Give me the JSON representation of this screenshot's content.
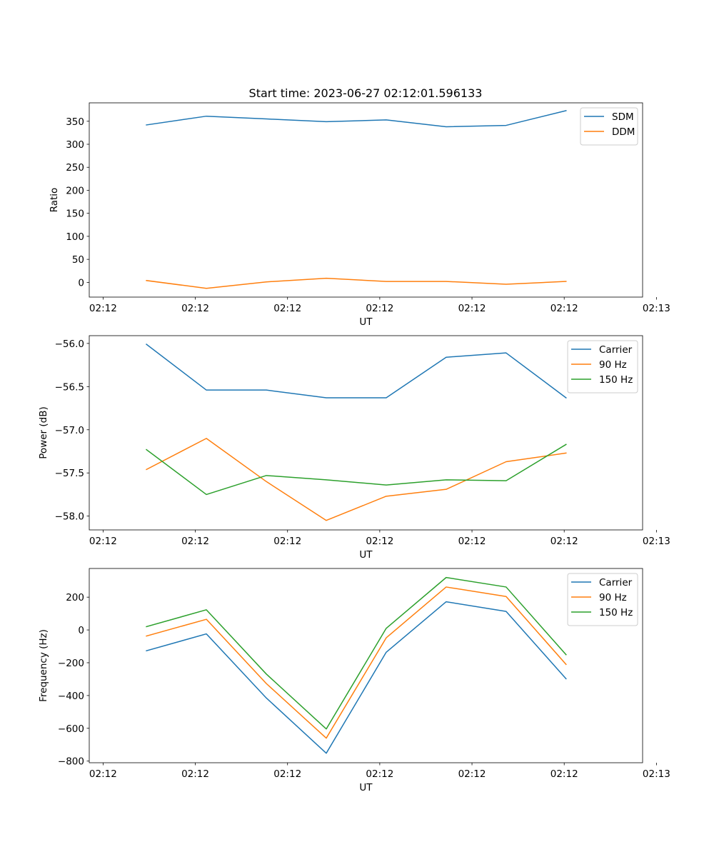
{
  "figure": {
    "title": "Start time: 2023-06-27 02:12:01.596133"
  },
  "colors": {
    "c0": "#1f77b4",
    "c1": "#ff7f0e",
    "c2": "#2ca02c",
    "axis": "#000000",
    "legend_edge": "#cccccc"
  },
  "chart_data": [
    {
      "type": "line",
      "title": "Start time: 2023-06-27 02:12:01.596133",
      "xlabel": "UT",
      "ylabel": "Ratio",
      "xlim": [
        -0.15,
        5.85
      ],
      "ylim": [
        -32,
        390
      ],
      "xticks": [
        0,
        1,
        2,
        3,
        4,
        5,
        6
      ],
      "xtick_labels": [
        "02:12",
        "02:12",
        "02:12",
        "02:12",
        "02:12",
        "02:12",
        "02:13"
      ],
      "yticks": [
        0,
        50,
        100,
        150,
        200,
        250,
        300,
        350
      ],
      "ytick_labels": [
        "0",
        "50",
        "100",
        "150",
        "200",
        "250",
        "300",
        "350"
      ],
      "legend_position": "upper right",
      "x": [
        0.47,
        1.12,
        1.77,
        2.42,
        3.07,
        3.72,
        4.37,
        5.02
      ],
      "series": [
        {
          "name": "SDM",
          "color": "#1f77b4",
          "values": [
            342,
            361,
            355,
            349,
            353,
            338,
            341,
            373
          ]
        },
        {
          "name": "DDM",
          "color": "#ff7f0e",
          "values": [
            4,
            -13,
            1,
            9,
            2,
            2,
            -4,
            2
          ]
        }
      ]
    },
    {
      "type": "line",
      "xlabel": "UT",
      "ylabel": "Power (dB)",
      "xlim": [
        -0.15,
        5.85
      ],
      "ylim": [
        -58.16,
        -55.91
      ],
      "xticks": [
        0,
        1,
        2,
        3,
        4,
        5,
        6
      ],
      "xtick_labels": [
        "02:12",
        "02:12",
        "02:12",
        "02:12",
        "02:12",
        "02:12",
        "02:13"
      ],
      "yticks": [
        -58.0,
        -57.5,
        -57.0,
        -56.5,
        -56.0
      ],
      "ytick_labels": [
        "−58.0",
        "−57.5",
        "−57.0",
        "−56.5",
        "−56.0"
      ],
      "legend_position": "upper right",
      "x": [
        0.47,
        1.12,
        1.77,
        2.42,
        3.07,
        3.72,
        4.37,
        5.02
      ],
      "series": [
        {
          "name": "Carrier",
          "color": "#1f77b4",
          "values": [
            -56.01,
            -56.54,
            -56.54,
            -56.63,
            -56.63,
            -56.16,
            -56.11,
            -56.63
          ]
        },
        {
          "name": "90 Hz",
          "color": "#ff7f0e",
          "values": [
            -57.46,
            -57.1,
            -57.6,
            -58.05,
            -57.77,
            -57.69,
            -57.37,
            -57.27
          ]
        },
        {
          "name": "150 Hz",
          "color": "#2ca02c",
          "values": [
            -57.23,
            -57.75,
            -57.53,
            -57.58,
            -57.64,
            -57.58,
            -57.59,
            -57.17
          ]
        }
      ]
    },
    {
      "type": "line",
      "xlabel": "UT",
      "ylabel": "Frequency (Hz)",
      "xlim": [
        -0.15,
        5.85
      ],
      "ylim": [
        -810,
        375
      ],
      "xticks": [
        0,
        1,
        2,
        3,
        4,
        5,
        6
      ],
      "xtick_labels": [
        "02:12",
        "02:12",
        "02:12",
        "02:12",
        "02:12",
        "02:12",
        "02:13"
      ],
      "yticks": [
        -800,
        -600,
        -400,
        -200,
        0,
        200
      ],
      "ytick_labels": [
        "−800",
        "−600",
        "−400",
        "−200",
        "0",
        "200"
      ],
      "legend_position": "upper right",
      "x": [
        0.47,
        1.12,
        1.77,
        2.42,
        3.07,
        3.72,
        4.37,
        5.02
      ],
      "series": [
        {
          "name": "Carrier",
          "color": "#1f77b4",
          "values": [
            -127,
            -24,
            -415,
            -752,
            -136,
            172,
            113,
            -298
          ]
        },
        {
          "name": "90 Hz",
          "color": "#ff7f0e",
          "values": [
            -37,
            65,
            -327,
            -660,
            -48,
            262,
            204,
            -210
          ]
        },
        {
          "name": "150 Hz",
          "color": "#2ca02c",
          "values": [
            20,
            123,
            -269,
            -604,
            10,
            320,
            262,
            -151
          ]
        }
      ]
    }
  ]
}
